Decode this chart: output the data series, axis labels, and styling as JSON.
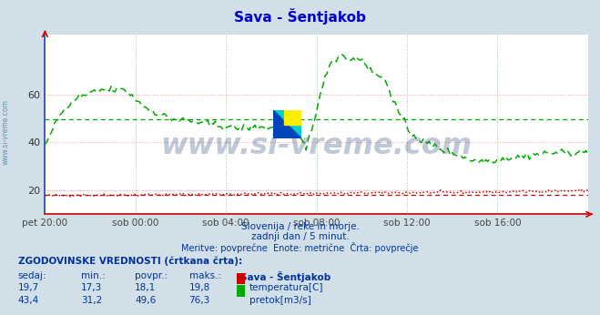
{
  "title": "Sava - Šentjakob",
  "bg_color": "#d0dfe8",
  "plot_bg_color": "#ffffff",
  "xlabel_ticks": [
    "pet 20:00",
    "sob 00:00",
    "sob 04:00",
    "sob 08:00",
    "sob 12:00",
    "sob 16:00"
  ],
  "ylim": [
    10,
    85
  ],
  "xlim": [
    0,
    288
  ],
  "yticks": [
    20,
    40,
    60
  ],
  "xtick_positions": [
    0,
    48,
    96,
    144,
    192,
    240
  ],
  "grid_color_h": "#ff9999",
  "grid_color_v": "#99cc99",
  "temperature_color": "#cc0000",
  "flow_color": "#00aa00",
  "avg_temp": 18.1,
  "avg_flow": 49.6,
  "watermark_text": "www.si-vreme.com",
  "watermark_color": "#1a3a6e",
  "watermark_alpha": 0.28,
  "subtitle1": "Slovenija / reke in morje.",
  "subtitle2": "zadnji dan / 5 minut.",
  "subtitle3": "Meritve: povprečne  Enote: metrične  Črta: povprečje",
  "table_header": "ZGODOVINSKE VREDNOSTI (črtkana črta):",
  "col_headers": [
    "sedaj:",
    "min.:",
    "povpr.:",
    "maks.:",
    "Sava - Šentjakob"
  ],
  "row1": [
    "19,7",
    "17,3",
    "18,1",
    "19,8"
  ],
  "row2": [
    "43,4",
    "31,2",
    "49,6",
    "76,3"
  ],
  "label1": "temperatura[C]",
  "label2": "pretok[m3/s]",
  "text_color": "#003399",
  "sidebar_text": "www.si-vreme.com",
  "sidebar_color": "#4488aa",
  "axis_color": "#cc0000",
  "spine_color": "#2244aa"
}
